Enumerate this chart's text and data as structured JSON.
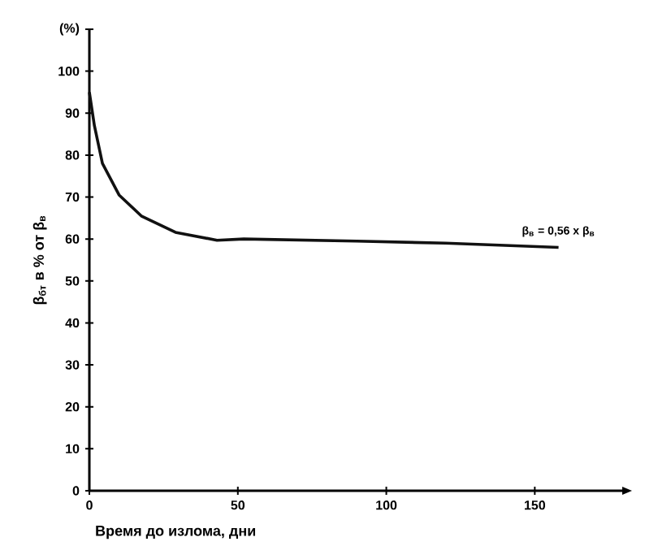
{
  "chart_data": {
    "type": "line",
    "xlabel": "Время до излома, дни",
    "ylabel": "β$_{бт}$ в % от β$_{в}$",
    "x": [
      0,
      1.7,
      4.4,
      10,
      17.5,
      29,
      43,
      52,
      90,
      120,
      158
    ],
    "values": [
      95,
      87,
      78,
      70.5,
      65.5,
      61.6,
      59.7,
      60,
      59.5,
      59,
      58
    ],
    "color": "#111111",
    "xlim": [
      0,
      180
    ],
    "ylim": [
      0,
      110
    ],
    "xticks": [
      0,
      50,
      100,
      150
    ],
    "yticks": [
      0,
      10,
      20,
      30,
      40,
      50,
      60,
      70,
      80,
      90,
      100,
      {
        "value": 110,
        "label": "(%)"
      }
    ],
    "annotations": [
      {
        "text": "β$_{в}$ = 0,56 x β$_{в}$",
        "x": 158,
        "y": 58
      }
    ],
    "grid": false,
    "marker": "none",
    "line_style": "solid"
  }
}
